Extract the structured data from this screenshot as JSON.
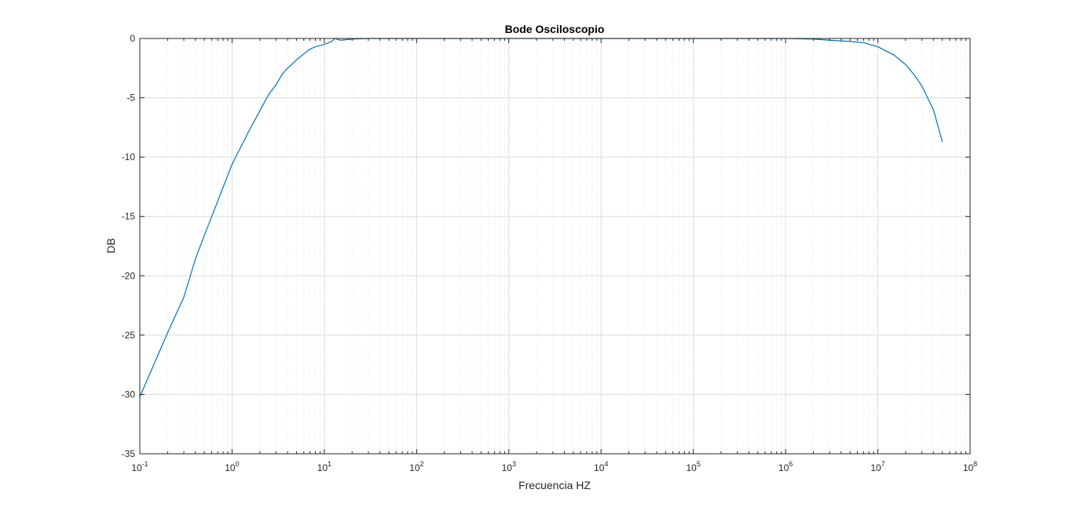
{
  "chart_data": {
    "type": "line",
    "title": "Bode Osciloscopio",
    "xlabel": "Frecuencia HZ",
    "ylabel": "DB",
    "xscale": "log",
    "xlim": [
      0.1,
      100000000
    ],
    "ylim": [
      -35,
      0
    ],
    "grid": true,
    "minor_grid": true,
    "legend": "none",
    "x_ticks": [
      {
        "value": 0.1,
        "base": "10",
        "exp": "-1"
      },
      {
        "value": 1,
        "base": "10",
        "exp": "0"
      },
      {
        "value": 10,
        "base": "10",
        "exp": "1"
      },
      {
        "value": 100,
        "base": "10",
        "exp": "2"
      },
      {
        "value": 1000,
        "base": "10",
        "exp": "3"
      },
      {
        "value": 10000,
        "base": "10",
        "exp": "4"
      },
      {
        "value": 100000,
        "base": "10",
        "exp": "5"
      },
      {
        "value": 1000000,
        "base": "10",
        "exp": "6"
      },
      {
        "value": 10000000,
        "base": "10",
        "exp": "7"
      },
      {
        "value": 100000000,
        "base": "10",
        "exp": "8"
      }
    ],
    "y_ticks": [
      {
        "value": 0,
        "label": "0"
      },
      {
        "value": -5,
        "label": "-5"
      },
      {
        "value": -10,
        "label": "-10"
      },
      {
        "value": -15,
        "label": "-15"
      },
      {
        "value": -20,
        "label": "-20"
      },
      {
        "value": -25,
        "label": "-25"
      },
      {
        "value": -30,
        "label": "-30"
      },
      {
        "value": -35,
        "label": "-35"
      }
    ],
    "colors": {
      "line": "#0072BD",
      "axes": "#262626",
      "grid": "#dcdcdc",
      "minor_grid": "#e6e6e6"
    },
    "series": [
      {
        "x": [
          0.1,
          0.2,
          0.3,
          0.4,
          0.5,
          0.7,
          1,
          1.5,
          2,
          2.5,
          3,
          3.5,
          4,
          5,
          6,
          7,
          8,
          10,
          12,
          13,
          15,
          20,
          30,
          50,
          100,
          1000,
          10000,
          100000,
          1000000,
          2000000,
          3000000,
          5000000,
          7000000,
          10000000,
          15000000,
          20000000,
          25000000,
          30000000,
          40000000,
          50000000
        ],
        "y": [
          -30.2,
          -24.8,
          -21.8,
          -18.6,
          -16.6,
          -13.7,
          -10.6,
          -7.9,
          -6.1,
          -4.7,
          -3.9,
          -3.0,
          -2.5,
          -1.8,
          -1.3,
          -0.9,
          -0.7,
          -0.5,
          -0.25,
          0,
          -0.15,
          -0.05,
          0,
          0,
          0,
          0,
          0,
          0,
          0,
          -0.05,
          -0.15,
          -0.25,
          -0.35,
          -0.7,
          -1.4,
          -2.2,
          -3.1,
          -4.0,
          -6.0,
          -8.7
        ]
      }
    ]
  }
}
